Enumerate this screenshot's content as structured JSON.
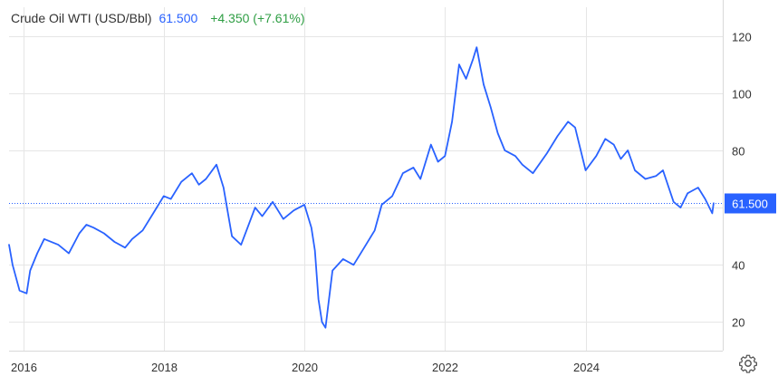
{
  "header": {
    "name": "Crude Oil WTI (USD/Bbl)",
    "price": "61.500",
    "change": "+4.350 (+7.61%)"
  },
  "price_label": "61.500",
  "colors": {
    "line": "#2962ff",
    "change": "#2f9e44",
    "grid": "#e6e6e6"
  },
  "icons": {
    "settings": "gear-icon"
  },
  "chart_data": {
    "type": "line",
    "title": "",
    "xlabel": "",
    "ylabel": "",
    "x_ticks": [
      "2016",
      "2018",
      "2020",
      "2022",
      "2024"
    ],
    "y_ticks": [
      20,
      40,
      60,
      80,
      100,
      120
    ],
    "y_tick_labels": [
      "20",
      "40",
      "",
      "80",
      "100",
      "120"
    ],
    "ylim": [
      10,
      130
    ],
    "xlim": [
      2015.8,
      2025.95
    ],
    "grid": true,
    "current_value": 61.5,
    "series": [
      {
        "name": "",
        "x": [
          2015.8,
          2015.85,
          2015.95,
          2016.05,
          2016.1,
          2016.2,
          2016.3,
          2016.5,
          2016.65,
          2016.8,
          2016.9,
          2017.0,
          2017.15,
          2017.3,
          2017.45,
          2017.55,
          2017.7,
          2017.85,
          2018.0,
          2018.1,
          2018.25,
          2018.4,
          2018.5,
          2018.6,
          2018.75,
          2018.85,
          2018.97,
          2019.1,
          2019.3,
          2019.4,
          2019.55,
          2019.7,
          2019.85,
          2020.0,
          2020.1,
          2020.15,
          2020.2,
          2020.25,
          2020.3,
          2020.4,
          2020.55,
          2020.7,
          2020.85,
          2021.0,
          2021.1,
          2021.25,
          2021.4,
          2021.55,
          2021.65,
          2021.8,
          2021.9,
          2022.0,
          2022.1,
          2022.2,
          2022.3,
          2022.4,
          2022.45,
          2022.55,
          2022.65,
          2022.75,
          2022.85,
          2023.0,
          2023.1,
          2023.25,
          2023.45,
          2023.6,
          2023.75,
          2023.85,
          2024.0,
          2024.15,
          2024.28,
          2024.4,
          2024.5,
          2024.6,
          2024.7,
          2024.85,
          2025.0,
          2025.1,
          2025.25,
          2025.35,
          2025.45,
          2025.6,
          2025.7,
          2025.8,
          2025.82
        ],
        "values": [
          47,
          40,
          31,
          30,
          38,
          44,
          49,
          47,
          44,
          51,
          54,
          53,
          51,
          48,
          46,
          49,
          52,
          58,
          64,
          63,
          69,
          72,
          68,
          70,
          75,
          67,
          50,
          47,
          60,
          57,
          62,
          56,
          59,
          61,
          53,
          45,
          28,
          20,
          18,
          38,
          42,
          40,
          46,
          52,
          61,
          64,
          72,
          74,
          70,
          82,
          76,
          78,
          90,
          110,
          105,
          112,
          116,
          103,
          95,
          86,
          80,
          78,
          75,
          72,
          79,
          85,
          90,
          88,
          73,
          78,
          84,
          82,
          77,
          80,
          73,
          70,
          71,
          73,
          62,
          60,
          65,
          67,
          63,
          58,
          61.5
        ]
      }
    ]
  }
}
